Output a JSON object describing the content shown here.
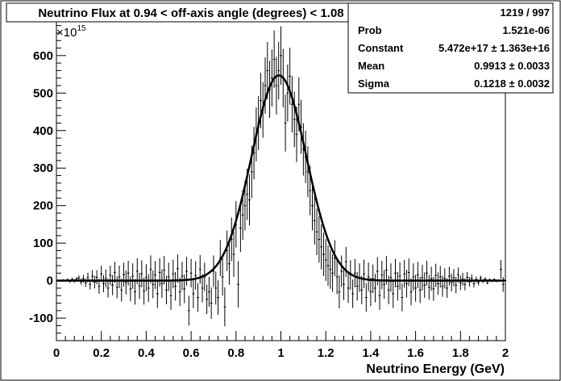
{
  "chart_data": {
    "type": "scatter",
    "title": "Neutrino Flux at  0.94 < off-axis angle (degrees) <  1.08",
    "xlabel": "Neutrino Energy (GeV)",
    "ylabel": "",
    "y_multiplier": "×10",
    "y_multiplier_exp": "15",
    "xlim": [
      0,
      2
    ],
    "ylim": [
      -160,
      690
    ],
    "x_ticks": [
      0,
      0.2,
      0.4,
      0.6,
      0.8,
      1,
      1.2,
      1.4,
      1.6,
      1.8,
      2
    ],
    "x_tick_labels": [
      "0",
      "0.2",
      "0.4",
      "0.6",
      "0.8",
      "1",
      "1.2",
      "1.4",
      "1.6",
      "1.8",
      "2"
    ],
    "y_ticks": [
      -100,
      0,
      100,
      200,
      300,
      400,
      500,
      600
    ],
    "y_tick_labels": [
      "-100",
      "0",
      "100",
      "200",
      "300",
      "400",
      "500",
      "600"
    ],
    "grid": false,
    "legend": "none",
    "fit": {
      "type": "gaussian",
      "constant": 547.2,
      "mean": 0.9913,
      "sigma": 0.1218
    },
    "stats": [
      {
        "name": "",
        "value": "1219 / 997"
      },
      {
        "name": "Prob",
        "value": "1.521e-06"
      },
      {
        "name": "Constant",
        "value": "5.472e+17 ± 1.363e+16"
      },
      {
        "name": "Mean",
        "value": "0.9913 ± 0.0033"
      },
      {
        "name": "Sigma",
        "value": "0.1218 ± 0.0032"
      }
    ],
    "points": [
      [
        0.01,
        0,
        2
      ],
      [
        0.02,
        -1,
        2
      ],
      [
        0.03,
        1,
        3
      ],
      [
        0.04,
        0,
        2
      ],
      [
        0.05,
        2,
        4
      ],
      [
        0.06,
        -2,
        4
      ],
      [
        0.07,
        3,
        5
      ],
      [
        0.08,
        -1,
        5
      ],
      [
        0.09,
        4,
        6
      ],
      [
        0.1,
        7,
        7
      ],
      [
        0.11,
        -3,
        8
      ],
      [
        0.12,
        5,
        10
      ],
      [
        0.13,
        -6,
        11
      ],
      [
        0.14,
        8,
        13
      ],
      [
        0.15,
        -10,
        14
      ],
      [
        0.16,
        12,
        16
      ],
      [
        0.17,
        -4,
        17
      ],
      [
        0.18,
        9,
        19
      ],
      [
        0.19,
        -15,
        20
      ],
      [
        0.2,
        18,
        22
      ],
      [
        0.21,
        -8,
        23
      ],
      [
        0.22,
        6,
        24
      ],
      [
        0.23,
        -20,
        25
      ],
      [
        0.24,
        14,
        26
      ],
      [
        0.25,
        -12,
        27
      ],
      [
        0.26,
        22,
        28
      ],
      [
        0.27,
        -18,
        29
      ],
      [
        0.28,
        10,
        30
      ],
      [
        0.29,
        -25,
        31
      ],
      [
        0.3,
        16,
        32
      ],
      [
        0.31,
        -5,
        32
      ],
      [
        0.32,
        20,
        33
      ],
      [
        0.33,
        -22,
        33
      ],
      [
        0.34,
        12,
        34
      ],
      [
        0.35,
        -30,
        34
      ],
      [
        0.36,
        25,
        35
      ],
      [
        0.37,
        -14,
        35
      ],
      [
        0.38,
        18,
        36
      ],
      [
        0.39,
        -28,
        36
      ],
      [
        0.4,
        8,
        36
      ],
      [
        0.41,
        -20,
        37
      ],
      [
        0.42,
        30,
        37
      ],
      [
        0.43,
        -10,
        37
      ],
      [
        0.44,
        15,
        37
      ],
      [
        0.45,
        -35,
        38
      ],
      [
        0.46,
        22,
        38
      ],
      [
        0.47,
        -8,
        38
      ],
      [
        0.48,
        28,
        38
      ],
      [
        0.49,
        -25,
        38
      ],
      [
        0.5,
        10,
        38
      ],
      [
        0.51,
        -40,
        38
      ],
      [
        0.52,
        18,
        38
      ],
      [
        0.53,
        -15,
        38
      ],
      [
        0.54,
        32,
        38
      ],
      [
        0.55,
        -30,
        38
      ],
      [
        0.56,
        12,
        38
      ],
      [
        0.57,
        -22,
        38
      ],
      [
        0.58,
        25,
        38
      ],
      [
        0.59,
        -80,
        40
      ],
      [
        0.6,
        20,
        38
      ],
      [
        0.61,
        -35,
        38
      ],
      [
        0.62,
        14,
        38
      ],
      [
        0.63,
        -45,
        38
      ],
      [
        0.64,
        30,
        38
      ],
      [
        0.65,
        -20,
        38
      ],
      [
        0.66,
        10,
        38
      ],
      [
        0.67,
        -50,
        39
      ],
      [
        0.68,
        -30,
        40
      ],
      [
        0.69,
        -60,
        42
      ],
      [
        0.7,
        25,
        42
      ],
      [
        0.71,
        -20,
        44
      ],
      [
        0.72,
        -45,
        46
      ],
      [
        0.73,
        60,
        48
      ],
      [
        0.74,
        10,
        50
      ],
      [
        0.75,
        -70,
        52
      ],
      [
        0.76,
        80,
        54
      ],
      [
        0.77,
        45,
        56
      ],
      [
        0.78,
        110,
        58
      ],
      [
        0.79,
        70,
        60
      ],
      [
        0.8,
        150,
        62
      ],
      [
        0.81,
        -10,
        62
      ],
      [
        0.82,
        140,
        64
      ],
      [
        0.83,
        175,
        66
      ],
      [
        0.84,
        200,
        66
      ],
      [
        0.85,
        230,
        68
      ],
      [
        0.86,
        215,
        68
      ],
      [
        0.87,
        290,
        70
      ],
      [
        0.88,
        340,
        70
      ],
      [
        0.89,
        390,
        72
      ],
      [
        0.9,
        420,
        72
      ],
      [
        0.91,
        480,
        74
      ],
      [
        0.92,
        455,
        74
      ],
      [
        0.93,
        520,
        75
      ],
      [
        0.94,
        560,
        76
      ],
      [
        0.95,
        510,
        76
      ],
      [
        0.96,
        540,
        76
      ],
      [
        0.97,
        590,
        77
      ],
      [
        0.98,
        520,
        77
      ],
      [
        0.99,
        560,
        77
      ],
      [
        1.0,
        600,
        78
      ],
      [
        1.01,
        540,
        78
      ],
      [
        1.02,
        420,
        76
      ],
      [
        1.03,
        500,
        76
      ],
      [
        1.04,
        545,
        76
      ],
      [
        1.05,
        470,
        75
      ],
      [
        1.06,
        430,
        74
      ],
      [
        1.07,
        390,
        74
      ],
      [
        1.08,
        470,
        72
      ],
      [
        1.09,
        410,
        72
      ],
      [
        1.1,
        350,
        70
      ],
      [
        1.11,
        330,
        70
      ],
      [
        1.12,
        290,
        68
      ],
      [
        1.13,
        240,
        66
      ],
      [
        1.14,
        200,
        66
      ],
      [
        1.15,
        160,
        64
      ],
      [
        1.16,
        130,
        62
      ],
      [
        1.17,
        110,
        62
      ],
      [
        1.18,
        90,
        60
      ],
      [
        1.19,
        70,
        58
      ],
      [
        1.2,
        55,
        56
      ],
      [
        1.21,
        40,
        54
      ],
      [
        1.22,
        30,
        52
      ],
      [
        1.23,
        20,
        50
      ],
      [
        1.24,
        60,
        48
      ],
      [
        1.25,
        10,
        46
      ],
      [
        1.26,
        -30,
        44
      ],
      [
        1.27,
        25,
        42
      ],
      [
        1.28,
        -10,
        42
      ],
      [
        1.29,
        50,
        40
      ],
      [
        1.3,
        -20,
        40
      ],
      [
        1.31,
        15,
        39
      ],
      [
        1.32,
        -35,
        38
      ],
      [
        1.33,
        20,
        38
      ],
      [
        1.34,
        -15,
        38
      ],
      [
        1.35,
        8,
        38
      ],
      [
        1.36,
        -25,
        38
      ],
      [
        1.37,
        18,
        38
      ],
      [
        1.38,
        -45,
        38
      ],
      [
        1.39,
        10,
        38
      ],
      [
        1.4,
        -30,
        38
      ],
      [
        1.41,
        5,
        38
      ],
      [
        1.42,
        -20,
        38
      ],
      [
        1.43,
        25,
        38
      ],
      [
        1.44,
        -40,
        38
      ],
      [
        1.45,
        15,
        38
      ],
      [
        1.46,
        -10,
        38
      ],
      [
        1.47,
        28,
        38
      ],
      [
        1.48,
        -25,
        38
      ],
      [
        1.49,
        8,
        38
      ],
      [
        1.5,
        -35,
        38
      ],
      [
        1.51,
        20,
        38
      ],
      [
        1.52,
        -15,
        38
      ],
      [
        1.53,
        12,
        37
      ],
      [
        1.54,
        -45,
        37
      ],
      [
        1.55,
        18,
        37
      ],
      [
        1.56,
        -8,
        37
      ],
      [
        1.57,
        22,
        37
      ],
      [
        1.58,
        -30,
        36
      ],
      [
        1.59,
        10,
        36
      ],
      [
        1.6,
        -20,
        36
      ],
      [
        1.61,
        15,
        35
      ],
      [
        1.62,
        -25,
        35
      ],
      [
        1.63,
        8,
        34
      ],
      [
        1.64,
        -12,
        34
      ],
      [
        1.65,
        20,
        33
      ],
      [
        1.66,
        -18,
        33
      ],
      [
        1.67,
        5,
        32
      ],
      [
        1.68,
        -22,
        32
      ],
      [
        1.69,
        14,
        31
      ],
      [
        1.7,
        -8,
        30
      ],
      [
        1.71,
        10,
        29
      ],
      [
        1.72,
        -15,
        28
      ],
      [
        1.73,
        6,
        27
      ],
      [
        1.74,
        -20,
        26
      ],
      [
        1.75,
        12,
        25
      ],
      [
        1.76,
        -5,
        24
      ],
      [
        1.77,
        8,
        23
      ],
      [
        1.78,
        -12,
        22
      ],
      [
        1.79,
        15,
        20
      ],
      [
        1.8,
        -6,
        19
      ],
      [
        1.81,
        4,
        17
      ],
      [
        1.82,
        -10,
        16
      ],
      [
        1.83,
        9,
        14
      ],
      [
        1.84,
        -3,
        13
      ],
      [
        1.85,
        6,
        11
      ],
      [
        1.86,
        -8,
        10
      ],
      [
        1.87,
        3,
        8
      ],
      [
        1.88,
        -5,
        7
      ],
      [
        1.89,
        7,
        6
      ],
      [
        1.9,
        -2,
        5
      ],
      [
        1.91,
        4,
        5
      ],
      [
        1.92,
        -6,
        4
      ],
      [
        1.93,
        2,
        4
      ],
      [
        1.94,
        -1,
        3
      ],
      [
        1.95,
        3,
        3
      ],
      [
        1.96,
        -2,
        2
      ],
      [
        1.97,
        1,
        2
      ],
      [
        1.98,
        30,
        25
      ],
      [
        1.99,
        -10,
        20
      ],
      [
        2.0,
        0,
        2
      ]
    ]
  }
}
